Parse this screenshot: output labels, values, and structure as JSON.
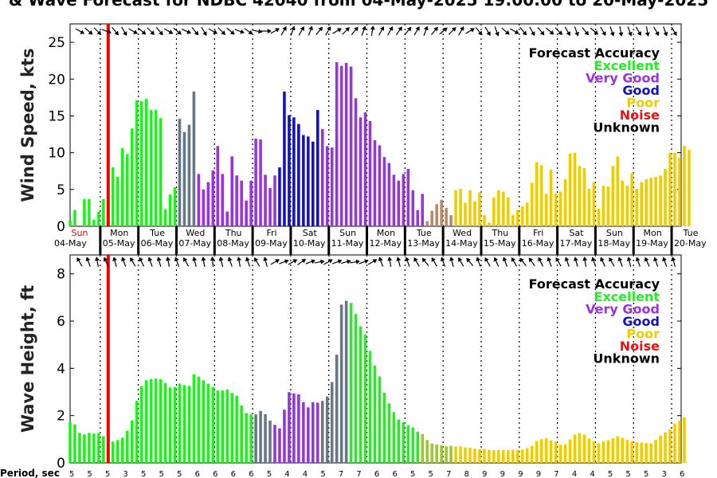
{
  "title": "& Wave Forecast for NDBC 42040 from 04-May-2025 19:00:00 to 20-May-2025",
  "colors": {
    "Excellent": "#22ee22",
    "Very Good": "#9933dd",
    "Good": "#1111cc",
    "Poor": "#eecc00",
    "Noise": "#ee1111",
    "Unknown": "#000000",
    "blend_exc_vg": "#667788",
    "blend_vg_poor": "#bb8866",
    "blend_exc_poor": "#99cc22",
    "now_line": "#ee0000"
  },
  "legend": {
    "title": "Forecast Accuracy",
    "items": [
      {
        "label": "Excellent",
        "color": "#22ee22"
      },
      {
        "label": "Very Good",
        "color": "#9933dd"
      },
      {
        "label": "Good",
        "color": "#1111cc"
      },
      {
        "label": "Poor",
        "color": "#eecc00"
      },
      {
        "label": "Noise",
        "color": "#ee1111"
      },
      {
        "label": "Unknown",
        "color": "#000000"
      }
    ]
  },
  "days": [
    {
      "name": "Sun",
      "date": "04-May"
    },
    {
      "name": "Mon",
      "date": "05-May"
    },
    {
      "name": "Tue",
      "date": "06-May"
    },
    {
      "name": "Wed",
      "date": "07-May"
    },
    {
      "name": "Thu",
      "date": "08-May"
    },
    {
      "name": "Fri",
      "date": "09-May"
    },
    {
      "name": "Sat",
      "date": "10-May"
    },
    {
      "name": "Sun",
      "date": "11-May"
    },
    {
      "name": "Mon",
      "date": "12-May"
    },
    {
      "name": "Tue",
      "date": "13-May"
    },
    {
      "name": "Wed",
      "date": "14-May"
    },
    {
      "name": "Thu",
      "date": "15-May"
    },
    {
      "name": "Fri",
      "date": "16-May"
    },
    {
      "name": "Sat",
      "date": "17-May"
    },
    {
      "name": "Sun",
      "date": "18-May"
    },
    {
      "name": "Mon",
      "date": "19-May"
    },
    {
      "name": "Tue",
      "date": "20-May"
    }
  ],
  "period_label": "Period, sec",
  "periods": [
    "5",
    "5",
    "5",
    "3",
    "5",
    "5",
    "5",
    "6",
    "6",
    "6",
    "6",
    "5",
    "4",
    "4",
    "5",
    "7",
    "7",
    "6",
    "6",
    "5",
    "5",
    "7",
    "8",
    "9",
    "9",
    "9",
    "9",
    "7",
    "4",
    "4",
    "5",
    "5",
    "5",
    "3",
    "6"
  ],
  "chart_data": [
    {
      "type": "bar",
      "name": "wind",
      "ylabel": "Wind Speed, kts",
      "ylim": [
        0,
        27.5
      ],
      "yticks": [
        0,
        5,
        10,
        15,
        20,
        25
      ],
      "xlim": [
        -0.792,
        15.25
      ],
      "now_day": 0.208,
      "dt_days": 0.125,
      "first_x": -0.792,
      "values": [
        0.8,
        2.2,
        0,
        3.7,
        3.7,
        0.9,
        2.0,
        3.7,
        6.2,
        8.0,
        6.7,
        10.6,
        9.8,
        13.3,
        17.1,
        17.0,
        17.3,
        15.8,
        15.8,
        14.7,
        2.3,
        4.3,
        5.3,
        14.6,
        12.8,
        13.8,
        18.3,
        7.1,
        5.0,
        6.0,
        7.6,
        10.9,
        7.1,
        2.0,
        9.5,
        6.9,
        6.2,
        3.5,
        6.2,
        11.9,
        11.8,
        7.0,
        5.2,
        6.9,
        8.0,
        18.3,
        15.1,
        14.8,
        13.9,
        12.4,
        12.2,
        11.5,
        15.8,
        13.2,
        10.9,
        10.7,
        22.3,
        21.8,
        22.2,
        21.7,
        17.4,
        14.8,
        15.5,
        14.3,
        11.7,
        11.0,
        9.4,
        8.6,
        7.0,
        6.2,
        7.1,
        7.8,
        4.9,
        2.2,
        4.4,
        0.7,
        2.1,
        3.0,
        3.6,
        2.5,
        1.5,
        4.9,
        5.1,
        3.2,
        4.9,
        3.4,
        4.6,
        1.5,
        0.5,
        3.9,
        4.9,
        4.7,
        3.9,
        1.5,
        2.2,
        2.7,
        3.2,
        5.9,
        8.7,
        8.3,
        4.4,
        7.7,
        4.5,
        4.7,
        6.4,
        9.9,
        10.0,
        8.2,
        7.9,
        5.1,
        6.0,
        2.4,
        5.5,
        5.4,
        8.2,
        9.5,
        6.2,
        5.5,
        7.2,
        5.1,
        6.0,
        6.4,
        6.6,
        6.7,
        6.9,
        7.8,
        10.0,
        10.0,
        9.3,
        10.9,
        10.4
      ],
      "quality": [
        "E",
        "E",
        "E",
        "E",
        "E",
        "E",
        "E",
        "E",
        "E",
        "E",
        "E",
        "E",
        "E",
        "E",
        "E",
        "E",
        "E",
        "E",
        "E",
        "E",
        "E",
        "E",
        "E",
        "X",
        "X",
        "X",
        "X",
        "V",
        "V",
        "V",
        "V",
        "V",
        "V",
        "V",
        "V",
        "V",
        "V",
        "V",
        "V",
        "V",
        "V",
        "V",
        "V",
        "V",
        "G",
        "G",
        "G",
        "G",
        "G",
        "G",
        "G",
        "G",
        "G",
        "V",
        "V",
        "V",
        "V",
        "V",
        "V",
        "V",
        "V",
        "V",
        "V",
        "V",
        "V",
        "V",
        "V",
        "V",
        "V",
        "V",
        "V",
        "V",
        "V",
        "V",
        "V",
        "M",
        "M",
        "M",
        "M",
        "M",
        "M",
        "P",
        "P",
        "P",
        "P",
        "P",
        "P",
        "P",
        "P",
        "P",
        "P",
        "P",
        "P",
        "P",
        "P",
        "P",
        "P",
        "P",
        "P",
        "P",
        "P",
        "P",
        "P",
        "P",
        "P",
        "P",
        "P",
        "P",
        "P",
        "P",
        "P",
        "P",
        "P",
        "P",
        "P",
        "P",
        "P",
        "P",
        "P",
        "P",
        "P",
        "P",
        "P",
        "P",
        "P",
        "P",
        "P",
        "P",
        "P",
        "P",
        "P"
      ],
      "arrows": [
        120,
        130,
        135,
        110,
        140,
        150,
        120,
        130,
        135,
        140,
        120,
        130,
        115,
        140,
        150,
        120,
        135,
        130,
        110,
        125,
        100,
        90,
        60,
        30,
        20,
        30,
        20,
        40,
        30,
        60,
        45,
        40,
        20,
        10,
        30,
        30,
        35,
        40,
        30,
        20,
        40,
        50,
        45,
        30,
        60,
        140,
        150,
        160,
        130,
        120,
        140,
        150,
        140,
        130,
        135,
        150,
        160,
        140,
        130,
        150,
        160,
        170,
        160,
        150,
        170,
        150,
        160,
        150
      ]
    },
    {
      "type": "bar",
      "name": "wave",
      "ylabel": "Wave Height, ft",
      "ylim": [
        0,
        8.8
      ],
      "yticks": [
        0,
        2,
        4,
        6,
        8
      ],
      "xlim": [
        -0.792,
        15.25
      ],
      "now_day": 0.208,
      "dt_days": 0.125,
      "first_x": -0.792,
      "values": [
        1.73,
        1.63,
        1.27,
        1.2,
        1.27,
        1.24,
        1.26,
        1.13,
        0.95,
        0.9,
        0.96,
        1.07,
        1.36,
        1.8,
        2.62,
        3.25,
        3.5,
        3.55,
        3.57,
        3.55,
        3.38,
        3.19,
        3.21,
        3.36,
        3.29,
        3.26,
        3.75,
        3.65,
        3.5,
        3.35,
        3.21,
        3.06,
        3.06,
        3.1,
        2.96,
        2.84,
        2.43,
        2.11,
        2.05,
        2.05,
        2.2,
        2.06,
        1.79,
        1.61,
        1.46,
        2.25,
        2.99,
        2.94,
        2.9,
        2.57,
        2.35,
        2.57,
        2.55,
        2.62,
        2.81,
        3.42,
        4.58,
        6.7,
        6.86,
        6.77,
        6.3,
        5.78,
        5.44,
        4.74,
        4.12,
        3.66,
        2.97,
        2.52,
        2.15,
        1.84,
        1.72,
        1.6,
        1.5,
        1.32,
        1.22,
        0.97,
        0.82,
        0.78,
        0.75,
        0.7,
        0.72,
        0.69,
        0.7,
        0.65,
        0.64,
        0.6,
        0.58,
        0.59,
        0.55,
        0.54,
        0.55,
        0.55,
        0.54,
        0.55,
        0.55,
        0.56,
        0.62,
        0.72,
        0.92,
        1.0,
        1.04,
        0.95,
        0.89,
        0.77,
        0.79,
        0.99,
        1.2,
        1.26,
        1.2,
        1.03,
        0.91,
        0.82,
        0.91,
        0.96,
        1.04,
        1.13,
        1.06,
        0.97,
        0.91,
        0.87,
        0.86,
        0.84,
        0.83,
        0.98,
        1.16,
        1.29,
        1.43,
        1.66,
        1.79,
        1.93
      ],
      "quality": [
        "E",
        "E",
        "E",
        "E",
        "E",
        "E",
        "E",
        "E",
        "E",
        "E",
        "E",
        "E",
        "E",
        "E",
        "E",
        "E",
        "E",
        "E",
        "E",
        "E",
        "E",
        "E",
        "E",
        "E",
        "E",
        "E",
        "E",
        "E",
        "E",
        "E",
        "E",
        "E",
        "E",
        "E",
        "E",
        "E",
        "E",
        "E",
        "E",
        "X",
        "X",
        "X",
        "X",
        "V",
        "V",
        "V",
        "V",
        "V",
        "V",
        "V",
        "V",
        "V",
        "V",
        "X",
        "X",
        "X",
        "X",
        "X",
        "X",
        "E",
        "E",
        "E",
        "E",
        "E",
        "E",
        "E",
        "E",
        "E",
        "E",
        "E",
        "E",
        "E",
        "E",
        "E",
        "C",
        "C",
        "C",
        "C",
        "C",
        "C",
        "C",
        "P",
        "P",
        "P",
        "P",
        "P",
        "P",
        "P",
        "P",
        "P",
        "P",
        "P",
        "P",
        "P",
        "P",
        "P",
        "P",
        "P",
        "P",
        "P",
        "P",
        "P",
        "P",
        "P",
        "P",
        "P",
        "P",
        "P",
        "P",
        "P",
        "P",
        "P",
        "P",
        "P",
        "P",
        "P",
        "P",
        "P",
        "P",
        "P",
        "P",
        "P",
        "P",
        "P",
        "P",
        "P",
        "P",
        "P",
        "P",
        "P",
        "P"
      ],
      "arrows": [
        330,
        340,
        350,
        335,
        345,
        340,
        330,
        335,
        340,
        345,
        350,
        340,
        330,
        345,
        350,
        355,
        345,
        340,
        350,
        340,
        330,
        345,
        60,
        70,
        60,
        55,
        70,
        80,
        60,
        70,
        75,
        80,
        70,
        60,
        340,
        350,
        345,
        340,
        330,
        320,
        330,
        340,
        345,
        330,
        320,
        340,
        330,
        335,
        340,
        330,
        320,
        325,
        335,
        340,
        330,
        340,
        345,
        350,
        340,
        335,
        330,
        340,
        345,
        340,
        335,
        340,
        340,
        345
      ]
    }
  ]
}
